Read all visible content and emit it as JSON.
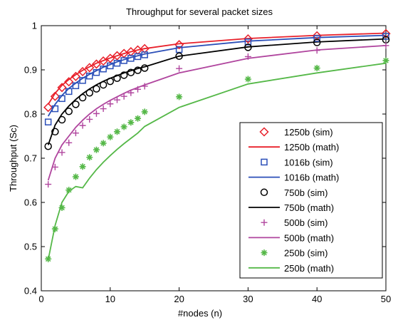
{
  "chart_data": {
    "type": "line",
    "title": "Throughput for several packet sizes",
    "xlabel": "#nodes (n)",
    "ylabel": "Throughput (Sc)",
    "xlim": [
      0,
      50
    ],
    "ylim": [
      0.4,
      1.0
    ],
    "xticks": [
      0,
      10,
      20,
      30,
      40,
      50
    ],
    "yticks": [
      0.4,
      0.5,
      0.6,
      0.7,
      0.8,
      0.9,
      1.0
    ],
    "ytick_labels": [
      "0.4",
      "0.5",
      "0.6",
      "0.7",
      "0.8",
      "0.9",
      "1"
    ],
    "grid": false,
    "legend_position": "bottom-right",
    "series": [
      {
        "name": "1250b (sim)",
        "kind": "marker",
        "marker": "diamond",
        "color": "#e8202a",
        "x": [
          1,
          2,
          3,
          4,
          5,
          6,
          7,
          8,
          9,
          10,
          11,
          12,
          13,
          14,
          15,
          20,
          30,
          40,
          50
        ],
        "y": [
          0.815,
          0.84,
          0.86,
          0.873,
          0.885,
          0.896,
          0.905,
          0.913,
          0.92,
          0.926,
          0.932,
          0.937,
          0.941,
          0.945,
          0.948,
          0.957,
          0.97,
          0.977,
          0.982
        ]
      },
      {
        "name": "1250b (math)",
        "kind": "line",
        "color": "#e8202a",
        "x": [
          1,
          2,
          3,
          4,
          5,
          6,
          7,
          8,
          9,
          10,
          11,
          12,
          13,
          14,
          15,
          20,
          30,
          40,
          50
        ],
        "y": [
          0.822,
          0.847,
          0.865,
          0.878,
          0.889,
          0.899,
          0.907,
          0.915,
          0.921,
          0.927,
          0.932,
          0.937,
          0.941,
          0.945,
          0.948,
          0.959,
          0.971,
          0.978,
          0.983
        ]
      },
      {
        "name": "1016b (sim)",
        "kind": "marker",
        "marker": "square",
        "color": "#2b4fb8",
        "x": [
          1,
          2,
          3,
          4,
          5,
          6,
          7,
          8,
          9,
          10,
          11,
          12,
          13,
          14,
          15,
          20,
          30,
          40,
          50
        ],
        "y": [
          0.782,
          0.812,
          0.835,
          0.851,
          0.864,
          0.876,
          0.886,
          0.894,
          0.902,
          0.909,
          0.915,
          0.921,
          0.926,
          0.93,
          0.934,
          0.946,
          0.963,
          0.971,
          0.976
        ]
      },
      {
        "name": "1016b (math)",
        "kind": "line",
        "color": "#2b4fb8",
        "x": [
          1,
          2,
          3,
          4,
          5,
          6,
          7,
          8,
          9,
          10,
          11,
          12,
          13,
          14,
          15,
          20,
          30,
          40,
          50
        ],
        "y": [
          0.795,
          0.822,
          0.842,
          0.858,
          0.87,
          0.881,
          0.89,
          0.898,
          0.906,
          0.912,
          0.918,
          0.923,
          0.928,
          0.932,
          0.936,
          0.95,
          0.965,
          0.973,
          0.978
        ]
      },
      {
        "name": "750b (sim)",
        "kind": "marker",
        "marker": "circle",
        "color": "#000000",
        "x": [
          1,
          2,
          3,
          4,
          5,
          6,
          7,
          8,
          9,
          10,
          11,
          12,
          13,
          14,
          15,
          20,
          30,
          40,
          50
        ],
        "y": [
          0.727,
          0.76,
          0.787,
          0.806,
          0.822,
          0.837,
          0.848,
          0.857,
          0.866,
          0.874,
          0.881,
          0.888,
          0.894,
          0.899,
          0.904,
          0.931,
          0.951,
          0.962,
          0.968
        ]
      },
      {
        "name": "750b (math)",
        "kind": "line",
        "color": "#000000",
        "x": [
          1,
          2,
          3,
          4,
          5,
          6,
          7,
          8,
          9,
          10,
          11,
          12,
          13,
          14,
          15,
          20,
          30,
          40,
          50
        ],
        "y": [
          0.73,
          0.775,
          0.8,
          0.818,
          0.833,
          0.846,
          0.857,
          0.866,
          0.874,
          0.881,
          0.887,
          0.893,
          0.898,
          0.903,
          0.907,
          0.931,
          0.952,
          0.963,
          0.97
        ]
      },
      {
        "name": "500b (sim)",
        "kind": "marker",
        "marker": "plus",
        "color": "#b0459e",
        "x": [
          1,
          2,
          3,
          4,
          5,
          6,
          7,
          8,
          9,
          10,
          11,
          12,
          13,
          14,
          15,
          20,
          30,
          40,
          50
        ],
        "y": [
          0.641,
          0.68,
          0.713,
          0.735,
          0.757,
          0.774,
          0.788,
          0.801,
          0.812,
          0.823,
          0.832,
          0.84,
          0.848,
          0.856,
          0.863,
          0.903,
          0.93,
          0.944,
          0.955
        ]
      },
      {
        "name": "500b (math)",
        "kind": "line",
        "color": "#b0459e",
        "x": [
          1,
          2,
          3,
          4,
          5,
          6,
          7,
          8,
          9,
          10,
          11,
          12,
          13,
          14,
          15,
          20,
          30,
          40,
          50
        ],
        "y": [
          0.65,
          0.7,
          0.73,
          0.75,
          0.77,
          0.786,
          0.8,
          0.812,
          0.822,
          0.831,
          0.839,
          0.847,
          0.854,
          0.86,
          0.866,
          0.893,
          0.926,
          0.945,
          0.955
        ]
      },
      {
        "name": "250b (sim)",
        "kind": "marker",
        "marker": "asterisk",
        "color": "#55b848",
        "x": [
          1,
          2,
          3,
          4,
          5,
          6,
          7,
          8,
          9,
          10,
          11,
          12,
          13,
          14,
          15,
          20,
          30,
          40,
          50
        ],
        "y": [
          0.472,
          0.54,
          0.588,
          0.628,
          0.658,
          0.681,
          0.702,
          0.719,
          0.734,
          0.748,
          0.76,
          0.771,
          0.781,
          0.79,
          0.805,
          0.839,
          0.879,
          0.904,
          0.921
        ]
      },
      {
        "name": "250b (math)",
        "kind": "line",
        "color": "#55b848",
        "x": [
          1,
          2,
          3,
          4,
          5,
          6,
          7,
          8,
          9,
          10,
          11,
          12,
          13,
          14,
          15,
          20,
          30,
          40,
          50
        ],
        "y": [
          0.47,
          0.548,
          0.6,
          0.625,
          0.636,
          0.633,
          0.655,
          0.674,
          0.691,
          0.706,
          0.72,
          0.733,
          0.745,
          0.757,
          0.772,
          0.815,
          0.868,
          0.893,
          0.915
        ]
      }
    ]
  }
}
